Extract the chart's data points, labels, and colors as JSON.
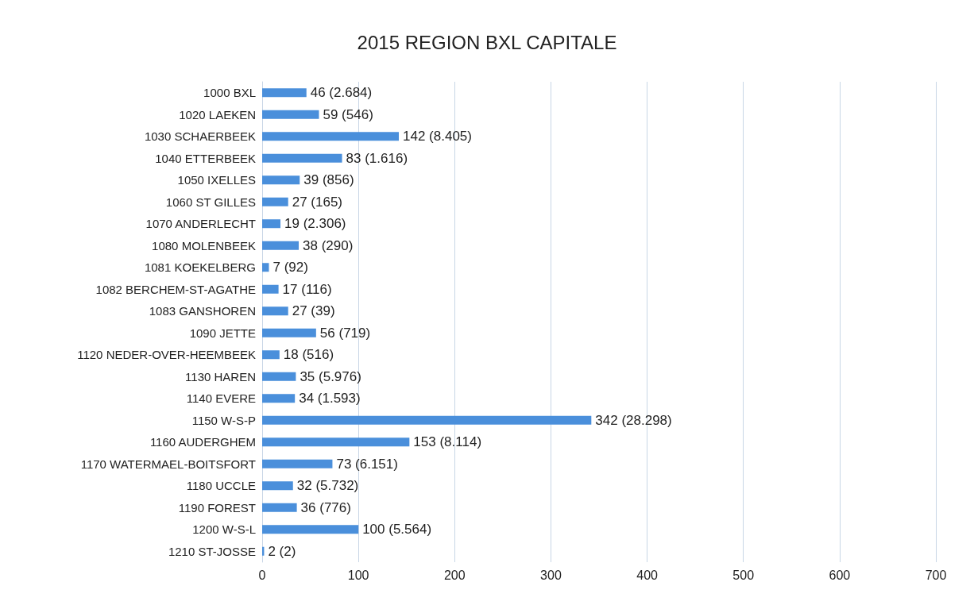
{
  "chart_data": {
    "type": "bar",
    "orientation": "horizontal",
    "title": "2015 REGION BXL CAPITALE",
    "categories": [
      "1000 BXL",
      "1020 LAEKEN",
      "1030 SCHAERBEEK",
      "1040 ETTERBEEK",
      "1050 IXELLES",
      "1060 ST GILLES",
      "1070 ANDERLECHT",
      "1080 MOLENBEEK",
      "1081 KOEKELBERG",
      "1082 BERCHEM-ST-AGATHE",
      "1083 GANSHOREN",
      "1090 JETTE",
      "1120 NEDER-OVER-HEEMBEEK",
      "1130 HAREN",
      "1140 EVERE",
      "1150 W-S-P",
      "1160 AUDERGHEM",
      "1170 WATERMAEL-BOITSFORT",
      "1180 UCCLE",
      "1190 FOREST",
      "1200 W-S-L",
      "1210 ST-JOSSE"
    ],
    "values": [
      46,
      59,
      142,
      83,
      39,
      27,
      19,
      38,
      7,
      17,
      27,
      56,
      18,
      35,
      34,
      342,
      153,
      73,
      32,
      36,
      100,
      2
    ],
    "value_labels": [
      "46 (2.684)",
      "59 (546)",
      "142 (8.405)",
      "83 (1.616)",
      "39 (856)",
      "27 (165)",
      "19 (2.306)",
      "38 (290)",
      "7 (92)",
      "17 (116)",
      "27 (39)",
      "56 (719)",
      "18 (516)",
      "35 (5.976)",
      "34 (1.593)",
      "342 (28.298)",
      "153 (8.114)",
      "73 (6.151)",
      "32 (5.732)",
      "36 (776)",
      "100 (5.564)",
      "2 (2)"
    ],
    "color": "#4a8fdb",
    "xlim": [
      0,
      700
    ],
    "xticks": [
      0,
      100,
      200,
      300,
      400,
      500,
      600,
      700
    ],
    "grid": "x"
  }
}
